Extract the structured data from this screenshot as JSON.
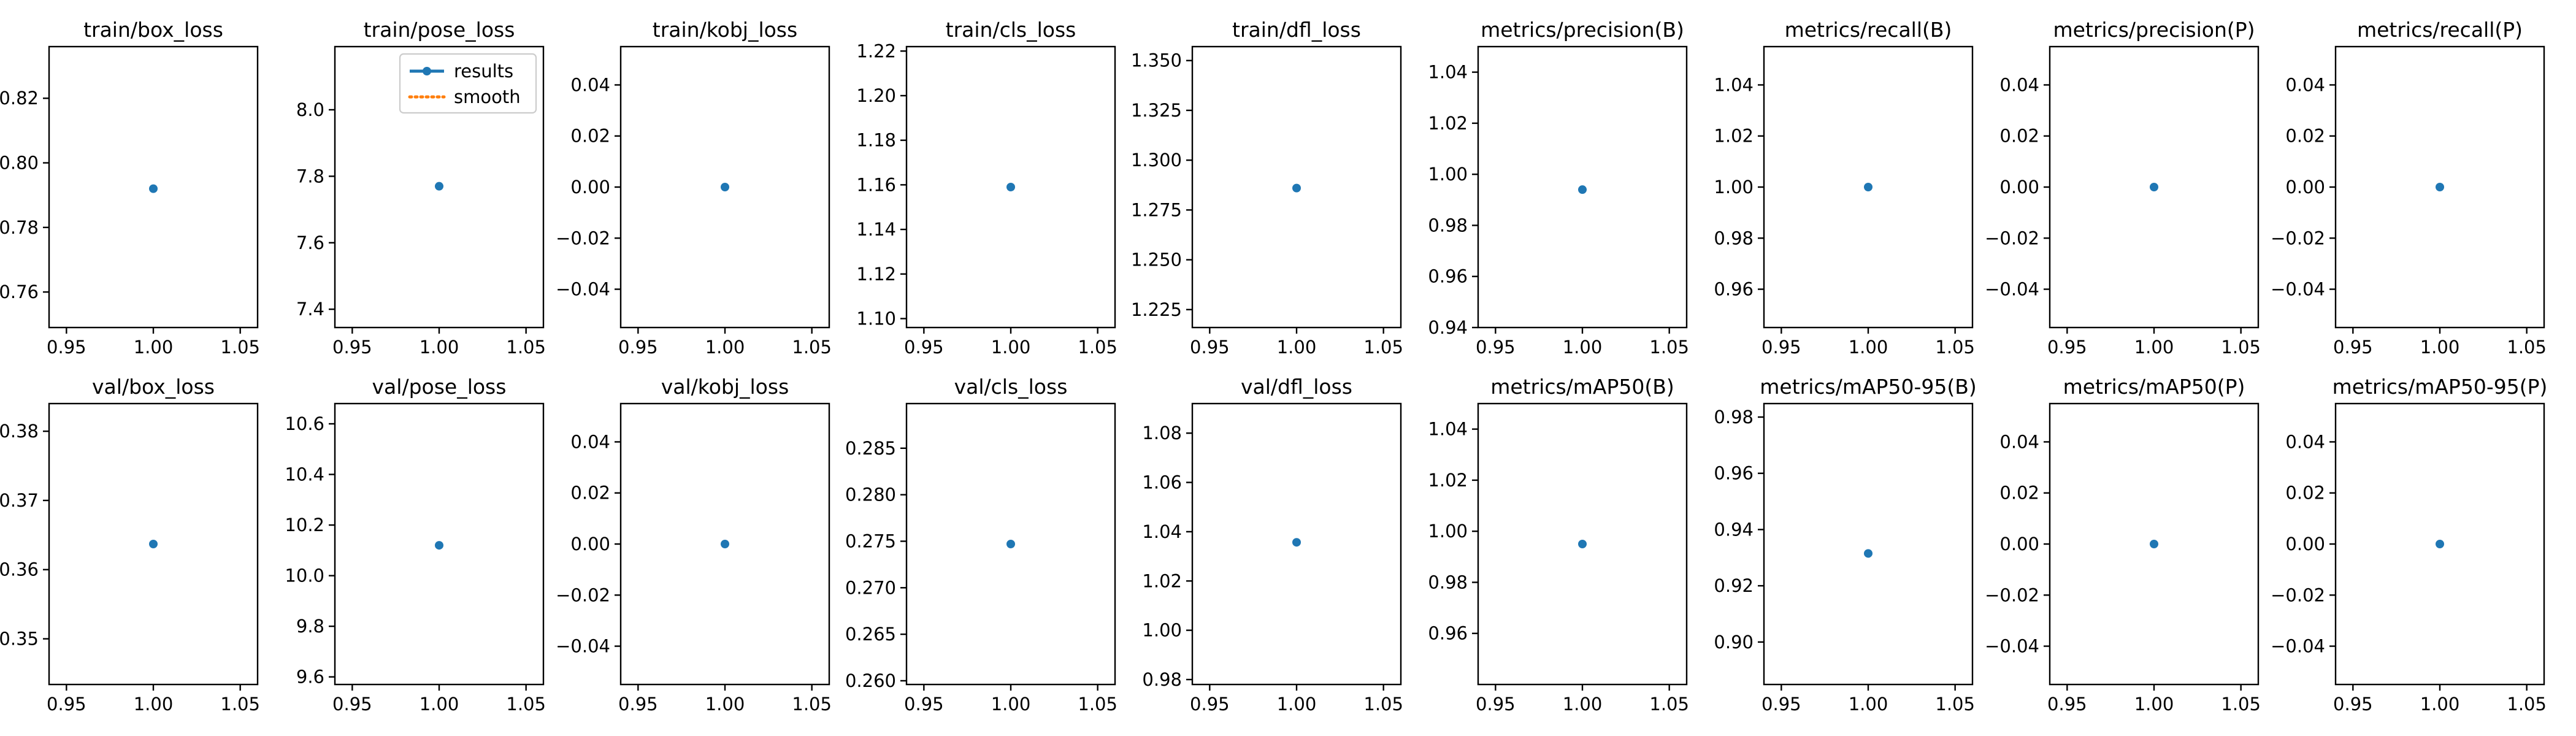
{
  "figure": {
    "colors": {
      "results": "#1f77b4",
      "smooth": "#ff7f0e"
    }
  },
  "chart_data": [
    {
      "type": "line",
      "title": "train/box_loss",
      "x": [
        1
      ],
      "y": [
        0.792
      ],
      "xlim": [
        0.94,
        1.06
      ],
      "ylim": [
        0.749,
        0.836
      ],
      "xticks": [
        0.95,
        1.0,
        1.05
      ],
      "yticks": [
        0.76,
        0.78,
        0.8,
        0.82
      ],
      "xtick_labels": [
        "0.95",
        "1.00",
        "1.05"
      ],
      "ytick_labels": [
        "0.76",
        "0.78",
        "0.80",
        "0.82"
      ]
    },
    {
      "type": "line",
      "title": "train/pose_loss",
      "x": [
        1
      ],
      "y": [
        7.77
      ],
      "xlim": [
        0.94,
        1.06
      ],
      "ylim": [
        7.345,
        8.19
      ],
      "xticks": [
        0.95,
        1.0,
        1.05
      ],
      "yticks": [
        7.4,
        7.6,
        7.8,
        8.0
      ],
      "xtick_labels": [
        "0.95",
        "1.00",
        "1.05"
      ],
      "ytick_labels": [
        "7.4",
        "7.6",
        "7.8",
        "8.0"
      ],
      "legend": {
        "location": "upper-right",
        "entries": [
          "results",
          "smooth"
        ]
      }
    },
    {
      "type": "line",
      "title": "train/kobj_loss",
      "x": [
        1
      ],
      "y": [
        0.0
      ],
      "xlim": [
        0.94,
        1.06
      ],
      "ylim": [
        -0.055,
        0.055
      ],
      "xticks": [
        0.95,
        1.0,
        1.05
      ],
      "yticks": [
        -0.04,
        -0.02,
        0.0,
        0.02,
        0.04
      ],
      "xtick_labels": [
        "0.95",
        "1.00",
        "1.05"
      ],
      "ytick_labels": [
        "−0.04",
        "−0.02",
        "0.00",
        "0.02",
        "0.04"
      ]
    },
    {
      "type": "line",
      "title": "train/cls_loss",
      "x": [
        1
      ],
      "y": [
        1.159
      ],
      "xlim": [
        0.94,
        1.06
      ],
      "ylim": [
        1.096,
        1.222
      ],
      "xticks": [
        0.95,
        1.0,
        1.05
      ],
      "yticks": [
        1.1,
        1.12,
        1.14,
        1.16,
        1.18,
        1.2,
        1.22
      ],
      "xtick_labels": [
        "0.95",
        "1.00",
        "1.05"
      ],
      "ytick_labels": [
        "1.10",
        "1.12",
        "1.14",
        "1.16",
        "1.18",
        "1.20",
        "1.22"
      ]
    },
    {
      "type": "line",
      "title": "train/dfl_loss",
      "x": [
        1
      ],
      "y": [
        1.286
      ],
      "xlim": [
        0.94,
        1.06
      ],
      "ylim": [
        1.216,
        1.357
      ],
      "xticks": [
        0.95,
        1.0,
        1.05
      ],
      "yticks": [
        1.225,
        1.25,
        1.275,
        1.3,
        1.325,
        1.35
      ],
      "xtick_labels": [
        "0.95",
        "1.00",
        "1.05"
      ],
      "ytick_labels": [
        "1.225",
        "1.250",
        "1.275",
        "1.300",
        "1.325",
        "1.350"
      ]
    },
    {
      "type": "line",
      "title": "metrics/precision(B)",
      "x": [
        1
      ],
      "y": [
        0.994
      ],
      "xlim": [
        0.94,
        1.06
      ],
      "ylim": [
        0.94,
        1.05
      ],
      "xticks": [
        0.95,
        1.0,
        1.05
      ],
      "yticks": [
        0.94,
        0.96,
        0.98,
        1.0,
        1.02,
        1.04
      ],
      "xtick_labels": [
        "0.95",
        "1.00",
        "1.05"
      ],
      "ytick_labels": [
        "0.94",
        "0.96",
        "0.98",
        "1.00",
        "1.02",
        "1.04"
      ]
    },
    {
      "type": "line",
      "title": "metrics/recall(B)",
      "x": [
        1
      ],
      "y": [
        1.0
      ],
      "xlim": [
        0.94,
        1.06
      ],
      "ylim": [
        0.945,
        1.055
      ],
      "xticks": [
        0.95,
        1.0,
        1.05
      ],
      "yticks": [
        0.96,
        0.98,
        1.0,
        1.02,
        1.04
      ],
      "xtick_labels": [
        "0.95",
        "1.00",
        "1.05"
      ],
      "ytick_labels": [
        "0.96",
        "0.98",
        "1.00",
        "1.02",
        "1.04"
      ]
    },
    {
      "type": "line",
      "title": "metrics/precision(P)",
      "x": [
        1
      ],
      "y": [
        0.0
      ],
      "xlim": [
        0.94,
        1.06
      ],
      "ylim": [
        -0.055,
        0.055
      ],
      "xticks": [
        0.95,
        1.0,
        1.05
      ],
      "yticks": [
        -0.04,
        -0.02,
        0.0,
        0.02,
        0.04
      ],
      "xtick_labels": [
        "0.95",
        "1.00",
        "1.05"
      ],
      "ytick_labels": [
        "−0.04",
        "−0.02",
        "0.00",
        "0.02",
        "0.04"
      ]
    },
    {
      "type": "line",
      "title": "metrics/recall(P)",
      "x": [
        1
      ],
      "y": [
        0.0
      ],
      "xlim": [
        0.94,
        1.06
      ],
      "ylim": [
        -0.055,
        0.055
      ],
      "xticks": [
        0.95,
        1.0,
        1.05
      ],
      "yticks": [
        -0.04,
        -0.02,
        0.0,
        0.02,
        0.04
      ],
      "xtick_labels": [
        "0.95",
        "1.00",
        "1.05"
      ],
      "ytick_labels": [
        "−0.04",
        "−0.02",
        "0.00",
        "0.02",
        "0.04"
      ]
    },
    {
      "type": "line",
      "title": "val/box_loss",
      "x": [
        1
      ],
      "y": [
        0.3637
      ],
      "xlim": [
        0.94,
        1.06
      ],
      "ylim": [
        0.3434,
        0.384
      ],
      "xticks": [
        0.95,
        1.0,
        1.05
      ],
      "yticks": [
        0.35,
        0.36,
        0.37,
        0.38
      ],
      "xtick_labels": [
        "0.95",
        "1.00",
        "1.05"
      ],
      "ytick_labels": [
        "0.35",
        "0.36",
        "0.37",
        "0.38"
      ]
    },
    {
      "type": "line",
      "title": "val/pose_loss",
      "x": [
        1
      ],
      "y": [
        10.12
      ],
      "xlim": [
        0.94,
        1.06
      ],
      "ylim": [
        9.57,
        10.68
      ],
      "xticks": [
        0.95,
        1.0,
        1.05
      ],
      "yticks": [
        9.6,
        9.8,
        10.0,
        10.2,
        10.4,
        10.6
      ],
      "xtick_labels": [
        "0.95",
        "1.00",
        "1.05"
      ],
      "ytick_labels": [
        "9.6",
        "9.8",
        "10.0",
        "10.2",
        "10.4",
        "10.6"
      ]
    },
    {
      "type": "line",
      "title": "val/kobj_loss",
      "x": [
        1
      ],
      "y": [
        0.0
      ],
      "xlim": [
        0.94,
        1.06
      ],
      "ylim": [
        -0.055,
        0.055
      ],
      "xticks": [
        0.95,
        1.0,
        1.05
      ],
      "yticks": [
        -0.04,
        -0.02,
        0.0,
        0.02,
        0.04
      ],
      "xtick_labels": [
        "0.95",
        "1.00",
        "1.05"
      ],
      "ytick_labels": [
        "−0.04",
        "−0.02",
        "0.00",
        "0.02",
        "0.04"
      ]
    },
    {
      "type": "line",
      "title": "val/cls_loss",
      "x": [
        1
      ],
      "y": [
        0.2747
      ],
      "xlim": [
        0.94,
        1.06
      ],
      "ylim": [
        0.2596,
        0.2898
      ],
      "xticks": [
        0.95,
        1.0,
        1.05
      ],
      "yticks": [
        0.26,
        0.265,
        0.27,
        0.275,
        0.28,
        0.285
      ],
      "xtick_labels": [
        "0.95",
        "1.00",
        "1.05"
      ],
      "ytick_labels": [
        "0.260",
        "0.265",
        "0.270",
        "0.275",
        "0.280",
        "0.285"
      ]
    },
    {
      "type": "line",
      "title": "val/dfl_loss",
      "x": [
        1
      ],
      "y": [
        1.0357
      ],
      "xlim": [
        0.94,
        1.06
      ],
      "ylim": [
        0.978,
        1.092
      ],
      "xticks": [
        0.95,
        1.0,
        1.05
      ],
      "yticks": [
        0.98,
        1.0,
        1.02,
        1.04,
        1.06,
        1.08
      ],
      "xtick_labels": [
        "0.95",
        "1.00",
        "1.05"
      ],
      "ytick_labels": [
        "0.98",
        "1.00",
        "1.02",
        "1.04",
        "1.06",
        "1.08"
      ]
    },
    {
      "type": "line",
      "title": "metrics/mAP50(B)",
      "x": [
        1
      ],
      "y": [
        0.995
      ],
      "xlim": [
        0.94,
        1.06
      ],
      "ylim": [
        0.94,
        1.05
      ],
      "xticks": [
        0.95,
        1.0,
        1.05
      ],
      "yticks": [
        0.96,
        0.98,
        1.0,
        1.02,
        1.04
      ],
      "xtick_labels": [
        "0.95",
        "1.00",
        "1.05"
      ],
      "ytick_labels": [
        "0.96",
        "0.98",
        "1.00",
        "1.02",
        "1.04"
      ]
    },
    {
      "type": "line",
      "title": "metrics/mAP50-95(B)",
      "x": [
        1
      ],
      "y": [
        0.9315
      ],
      "xlim": [
        0.94,
        1.06
      ],
      "ylim": [
        0.8849,
        0.9848
      ],
      "xticks": [
        0.95,
        1.0,
        1.05
      ],
      "yticks": [
        0.9,
        0.92,
        0.94,
        0.96,
        0.98
      ],
      "xtick_labels": [
        "0.95",
        "1.00",
        "1.05"
      ],
      "ytick_labels": [
        "0.90",
        "0.92",
        "0.94",
        "0.96",
        "0.98"
      ]
    },
    {
      "type": "line",
      "title": "metrics/mAP50(P)",
      "x": [
        1
      ],
      "y": [
        0.0
      ],
      "xlim": [
        0.94,
        1.06
      ],
      "ylim": [
        -0.055,
        0.055
      ],
      "xticks": [
        0.95,
        1.0,
        1.05
      ],
      "yticks": [
        -0.04,
        -0.02,
        0.0,
        0.02,
        0.04
      ],
      "xtick_labels": [
        "0.95",
        "1.00",
        "1.05"
      ],
      "ytick_labels": [
        "−0.04",
        "−0.02",
        "0.00",
        "0.02",
        "0.04"
      ]
    },
    {
      "type": "line",
      "title": "metrics/mAP50-95(P)",
      "x": [
        1
      ],
      "y": [
        0.0
      ],
      "xlim": [
        0.94,
        1.06
      ],
      "ylim": [
        -0.055,
        0.055
      ],
      "xticks": [
        0.95,
        1.0,
        1.05
      ],
      "yticks": [
        -0.04,
        -0.02,
        0.0,
        0.02,
        0.04
      ],
      "xtick_labels": [
        "0.95",
        "1.00",
        "1.05"
      ],
      "ytick_labels": [
        "−0.04",
        "−0.02",
        "0.00",
        "0.02",
        "0.04"
      ]
    }
  ]
}
